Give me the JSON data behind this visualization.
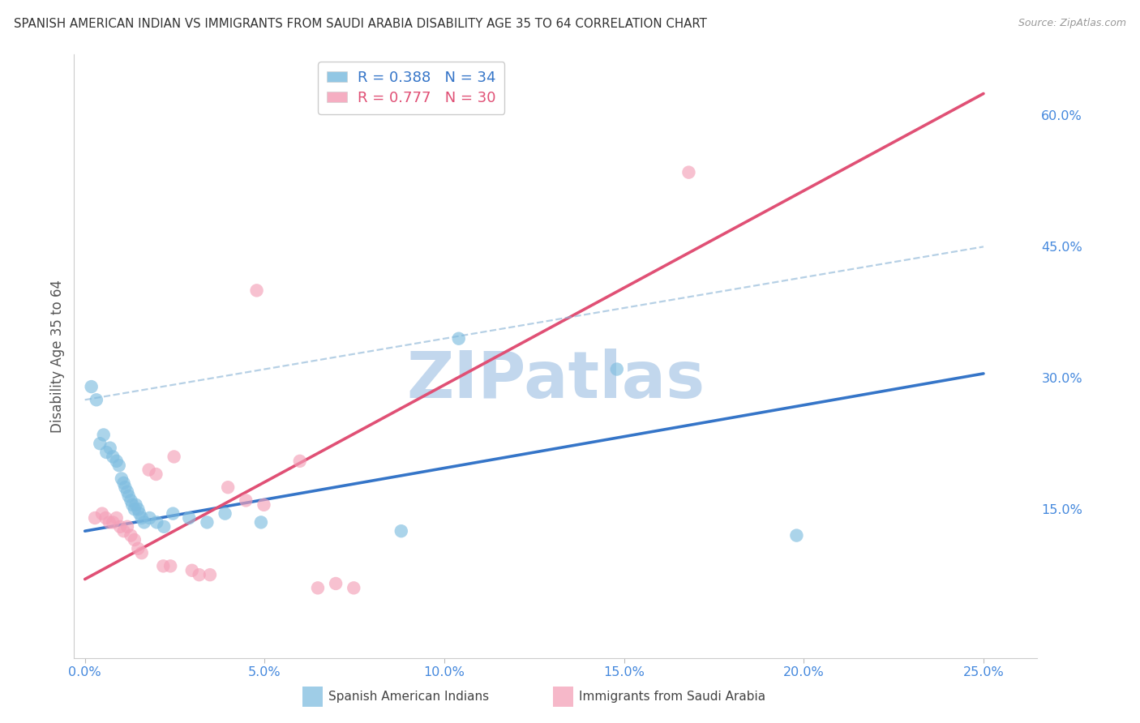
{
  "title": "SPANISH AMERICAN INDIAN VS IMMIGRANTS FROM SAUDI ARABIA DISABILITY AGE 35 TO 64 CORRELATION CHART",
  "source": "Source: ZipAtlas.com",
  "ylabel": "Disability Age 35 to 64",
  "xlim": [
    -0.3,
    26.5
  ],
  "ylim": [
    -2.0,
    67.0
  ],
  "legend1_r": "0.388",
  "legend1_n": "34",
  "legend2_r": "0.777",
  "legend2_n": "30",
  "blue_scatter_color": "#7fbde0",
  "pink_scatter_color": "#f4a0b8",
  "blue_line_color": "#3575c8",
  "pink_line_color": "#e05075",
  "blue_dashed_color": "#90b8d8",
  "watermark": "ZIPatlas",
  "watermark_color": "#b8d0ea",
  "bg_color": "#ffffff",
  "grid_color": "#cccccc",
  "title_color": "#333333",
  "axis_label_color": "#555555",
  "tick_color": "#4488dd",
  "source_color": "#999999",
  "blue_scatter": [
    [
      0.18,
      29.0
    ],
    [
      0.32,
      27.5
    ],
    [
      0.42,
      22.5
    ],
    [
      0.52,
      23.5
    ],
    [
      0.6,
      21.5
    ],
    [
      0.7,
      22.0
    ],
    [
      0.78,
      21.0
    ],
    [
      0.88,
      20.5
    ],
    [
      0.95,
      20.0
    ],
    [
      1.02,
      18.5
    ],
    [
      1.08,
      18.0
    ],
    [
      1.12,
      17.5
    ],
    [
      1.18,
      17.0
    ],
    [
      1.22,
      16.5
    ],
    [
      1.28,
      16.0
    ],
    [
      1.32,
      15.5
    ],
    [
      1.38,
      15.0
    ],
    [
      1.42,
      15.5
    ],
    [
      1.48,
      15.0
    ],
    [
      1.52,
      14.5
    ],
    [
      1.58,
      14.0
    ],
    [
      1.65,
      13.5
    ],
    [
      1.8,
      14.0
    ],
    [
      2.0,
      13.5
    ],
    [
      2.2,
      13.0
    ],
    [
      2.45,
      14.5
    ],
    [
      2.9,
      14.0
    ],
    [
      3.4,
      13.5
    ],
    [
      3.9,
      14.5
    ],
    [
      4.9,
      13.5
    ],
    [
      8.8,
      12.5
    ],
    [
      10.4,
      34.5
    ],
    [
      14.8,
      31.0
    ],
    [
      19.8,
      12.0
    ]
  ],
  "pink_scatter": [
    [
      0.28,
      14.0
    ],
    [
      0.48,
      14.5
    ],
    [
      0.58,
      14.0
    ],
    [
      0.68,
      13.5
    ],
    [
      0.78,
      13.5
    ],
    [
      0.88,
      14.0
    ],
    [
      0.98,
      13.0
    ],
    [
      1.08,
      12.5
    ],
    [
      1.18,
      13.0
    ],
    [
      1.28,
      12.0
    ],
    [
      1.38,
      11.5
    ],
    [
      1.48,
      10.5
    ],
    [
      1.58,
      10.0
    ],
    [
      1.78,
      19.5
    ],
    [
      1.98,
      19.0
    ],
    [
      2.18,
      8.5
    ],
    [
      2.38,
      8.5
    ],
    [
      2.48,
      21.0
    ],
    [
      2.98,
      8.0
    ],
    [
      3.18,
      7.5
    ],
    [
      3.48,
      7.5
    ],
    [
      3.98,
      17.5
    ],
    [
      4.48,
      16.0
    ],
    [
      4.78,
      40.0
    ],
    [
      4.98,
      15.5
    ],
    [
      5.98,
      20.5
    ],
    [
      6.48,
      6.0
    ],
    [
      6.98,
      6.5
    ],
    [
      7.48,
      6.0
    ],
    [
      16.8,
      53.5
    ]
  ],
  "xtick_values": [
    0.0,
    5.0,
    10.0,
    15.0,
    20.0,
    25.0
  ],
  "ytick_right_values": [
    15.0,
    30.0,
    45.0,
    60.0
  ],
  "blue_line_x0": 0.0,
  "blue_line_y0": 12.5,
  "blue_line_x1": 25.0,
  "blue_line_y1": 30.5,
  "pink_line_x0": 0.0,
  "pink_line_y0": 7.0,
  "pink_line_x1": 25.0,
  "pink_line_y1": 62.5,
  "dashed_line_x0": 0.0,
  "dashed_line_y0": 27.5,
  "dashed_line_x1": 25.0,
  "dashed_line_y1": 45.0
}
